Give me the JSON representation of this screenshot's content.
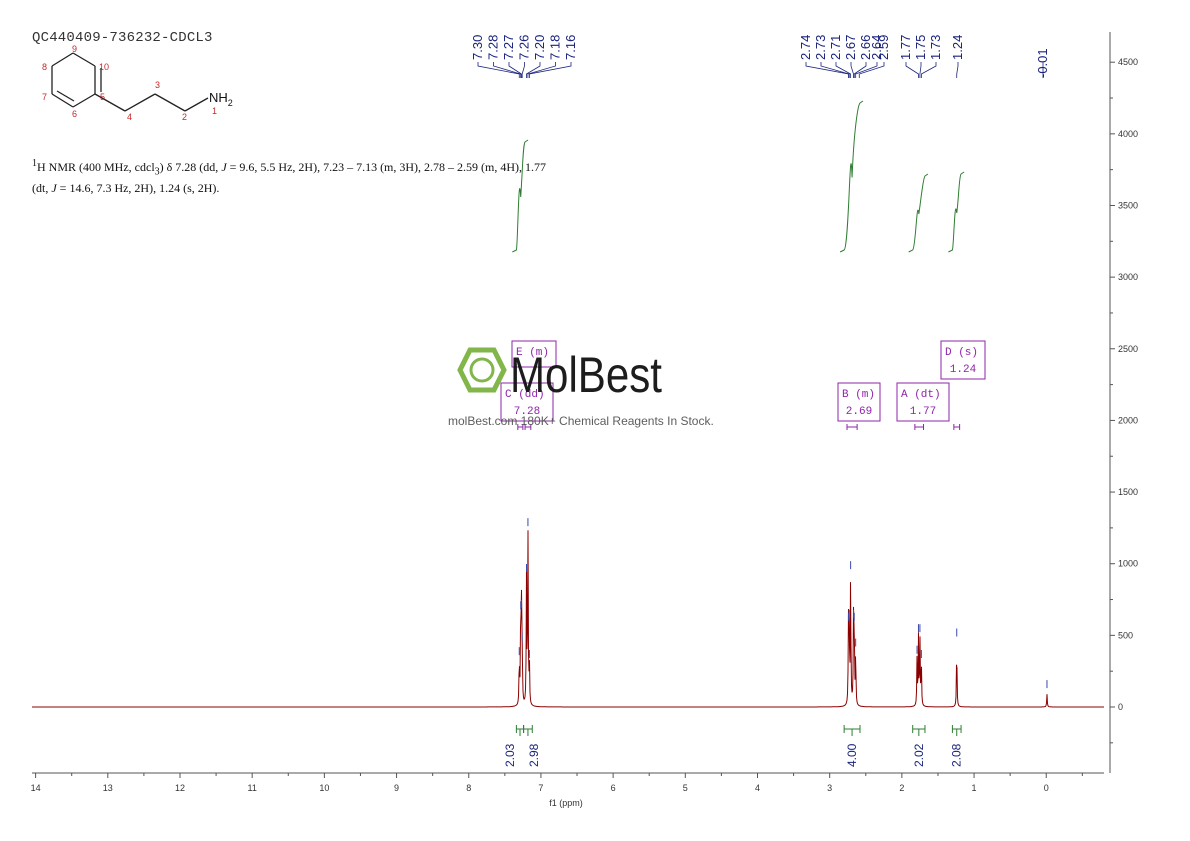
{
  "sample_id": "QC440409-736232-CDCL3",
  "nmr_summary": {
    "nucleus_label": "H NMR (400 MHz, cdcl",
    "nucleus_sup": "1",
    "solvent_sub": "3",
    "text_a": ") δ 7.28 (dd, ",
    "j1": "J",
    "text_b": " = 9.6, 5.5 Hz, 2H), 7.23 – 7.13 (m, 3H), 2.78 – 2.59 (m, 4H), 1.77",
    "text_c": "(dt, ",
    "j2": "J",
    "text_d": " = 14.6, 7.3 Hz, 2H), 1.24 (s, 2H)."
  },
  "molecule": {
    "atoms": [
      "1",
      "2",
      "3",
      "4",
      "5",
      "6",
      "7",
      "8",
      "9",
      "10"
    ],
    "amine_label": "NH",
    "amine_sub": "2"
  },
  "watermark": {
    "brand": "MolBest",
    "tagline": "molBest.com 180K+ Chemical Reagents In Stock."
  },
  "chart_data": {
    "type": "line",
    "title": "",
    "xlabel": "f1 (ppm)",
    "ylabel": "",
    "x_ticks": [
      14,
      13,
      12,
      11,
      10,
      9,
      8,
      7,
      6,
      5,
      4,
      3,
      2,
      1,
      0
    ],
    "y_ticks": [
      0,
      500,
      1000,
      1500,
      2000,
      2500,
      3000,
      3500,
      4000,
      4500
    ],
    "xlim": [
      14.05,
      -0.8
    ],
    "ylim": [
      -450,
      4620
    ],
    "peak_labels_left": [
      "7.30",
      "7.28",
      "7.27",
      "7.26",
      "7.20",
      "7.18",
      "7.16"
    ],
    "peak_labels_right": [
      "2.74",
      "2.73",
      "2.71",
      "2.67",
      "2.66",
      "2.64",
      "2.59",
      "1.77",
      "1.75",
      "1.73",
      "1.24"
    ],
    "peak_label_tms": "-0.01",
    "peaks": [
      {
        "ppm": 7.3,
        "height": 320
      },
      {
        "ppm": 7.28,
        "height": 640
      },
      {
        "ppm": 7.27,
        "height": 650
      },
      {
        "ppm": 7.26,
        "height": 420
      },
      {
        "ppm": 7.2,
        "height": 900
      },
      {
        "ppm": 7.18,
        "height": 1220
      },
      {
        "ppm": 7.16,
        "height": 300
      },
      {
        "ppm": 2.74,
        "height": 560
      },
      {
        "ppm": 2.73,
        "height": 580
      },
      {
        "ppm": 2.71,
        "height": 920
      },
      {
        "ppm": 2.67,
        "height": 580
      },
      {
        "ppm": 2.66,
        "height": 560
      },
      {
        "ppm": 2.64,
        "height": 380
      },
      {
        "ppm": 1.79,
        "height": 330
      },
      {
        "ppm": 1.77,
        "height": 480
      },
      {
        "ppm": 1.75,
        "height": 480
      },
      {
        "ppm": 1.73,
        "height": 300
      },
      {
        "ppm": 1.24,
        "height": 450
      },
      {
        "ppm": -0.01,
        "height": 90
      }
    ],
    "integrals": [
      {
        "from": 7.34,
        "to": 7.24,
        "value": "2.03"
      },
      {
        "from": 7.24,
        "to": 7.12,
        "value": "2.98"
      },
      {
        "from": 2.8,
        "to": 2.58,
        "value": "4.00"
      },
      {
        "from": 1.85,
        "to": 1.68,
        "value": "2.02"
      },
      {
        "from": 1.3,
        "to": 1.18,
        "value": "2.08"
      }
    ],
    "multiplets": [
      {
        "label": "E (m)",
        "shift": "7.18"
      },
      {
        "label": "C (dd)",
        "shift": "7.28"
      },
      {
        "label": "B (m)",
        "shift": "2.69"
      },
      {
        "label": "A (dt)",
        "shift": "1.77"
      },
      {
        "label": "D (s)",
        "shift": "1.24"
      }
    ],
    "colors": {
      "spectrum": "#8b0000",
      "integral": "#2e7d32",
      "peak_label": "#1a237e",
      "multiplet": "#8e24aa",
      "atom_numbers": "#c62828",
      "watermark_green": "#7cb342"
    }
  }
}
